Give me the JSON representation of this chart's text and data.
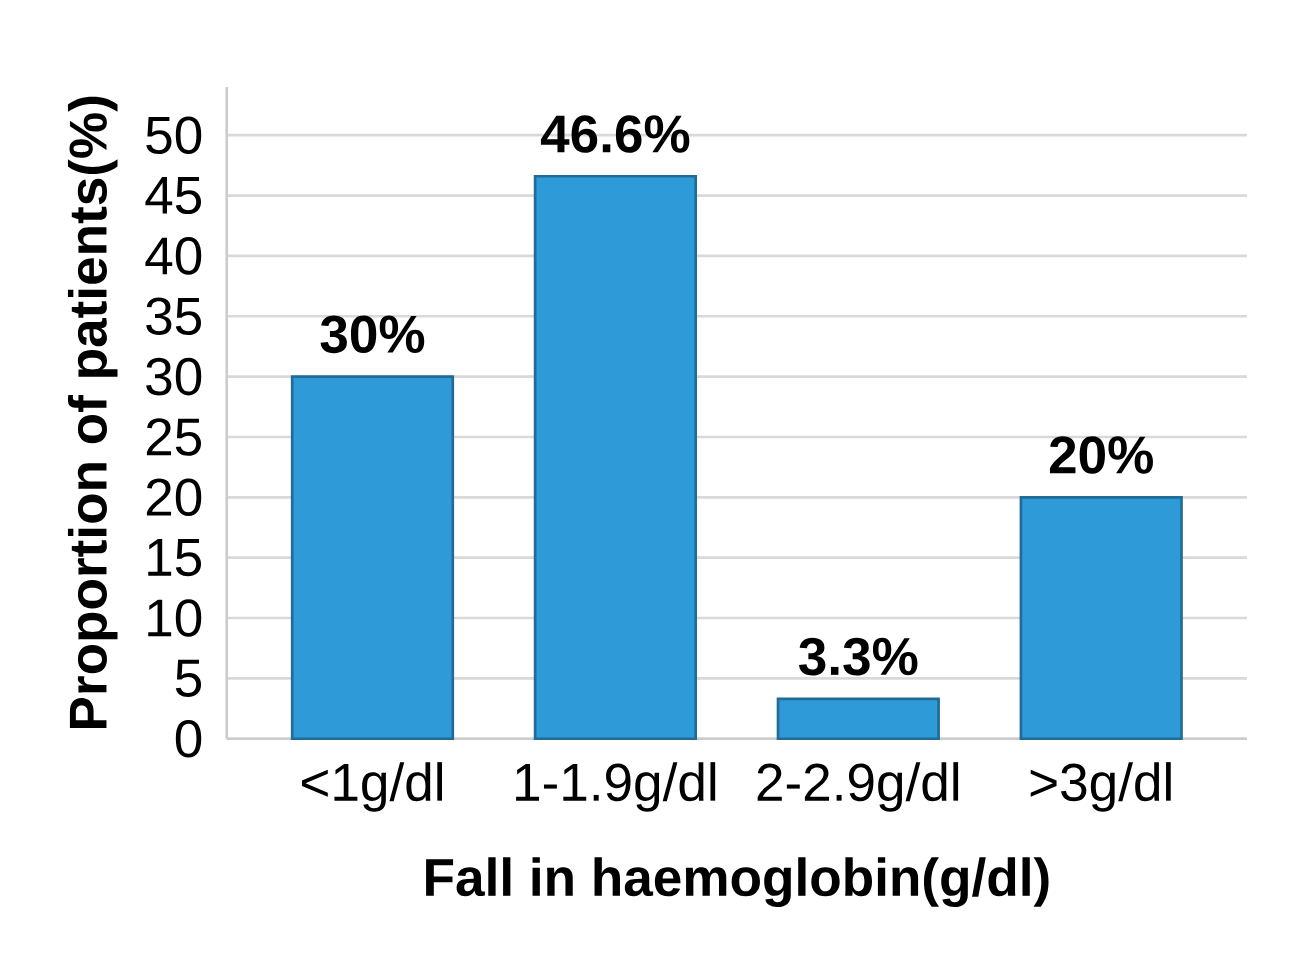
{
  "chart_data": {
    "type": "bar",
    "categories": [
      "<1g/dl",
      "1-1.9g/dl",
      "2-2.9g/dl",
      ">3g/dl"
    ],
    "values": [
      30,
      46.6,
      3.3,
      20
    ],
    "value_labels": [
      "30%",
      "46.6%",
      "3.3%",
      "20%"
    ],
    "color": "#2e9ad8",
    "xlabel": "Fall in haemoglobin(g/dl)",
    "ylabel": "Proportion of patients(%)",
    "ylim": [
      0,
      50
    ],
    "yticks": [
      0,
      5,
      10,
      15,
      20,
      25,
      30,
      35,
      40,
      45,
      50
    ],
    "grid": "y"
  }
}
